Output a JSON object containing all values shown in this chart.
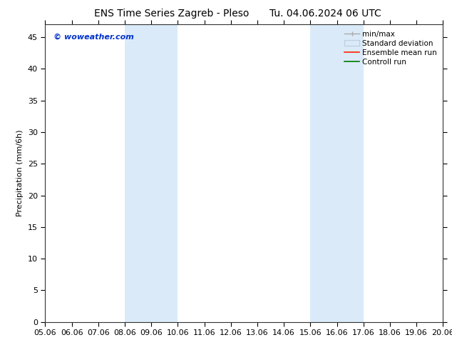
{
  "title_left": "ENS Time Series Zagreb - Pleso",
  "title_right": "Tu. 04.06.2024 06 UTC",
  "ylabel": "Precipitation (mm/6h)",
  "watermark": "© woweather.com",
  "ylim": [
    0,
    47
  ],
  "yticks": [
    0,
    5,
    10,
    15,
    20,
    25,
    30,
    35,
    40,
    45
  ],
  "xtick_labels": [
    "05.06",
    "06.06",
    "07.06",
    "08.06",
    "09.06",
    "10.06",
    "11.06",
    "12.06",
    "13.06",
    "14.06",
    "15.06",
    "16.06",
    "17.06",
    "18.06",
    "19.06",
    "20.06"
  ],
  "x_positions": [
    5,
    6,
    7,
    8,
    9,
    10,
    11,
    12,
    13,
    14,
    15,
    16,
    17,
    18,
    19,
    20
  ],
  "xlim": [
    5,
    20
  ],
  "background_color": "#ffffff",
  "plot_bg_color": "#ffffff",
  "shaded_regions": [
    {
      "x_start": 8.0,
      "x_end": 10.0,
      "color": "#daeaf8"
    },
    {
      "x_start": 15.0,
      "x_end": 17.0,
      "color": "#daeaf8"
    }
  ],
  "title_fontsize": 10,
  "ylabel_fontsize": 8,
  "tick_fontsize": 8,
  "watermark_color": "#0033cc",
  "watermark_fontsize": 8,
  "legend_fontsize": 7.5
}
